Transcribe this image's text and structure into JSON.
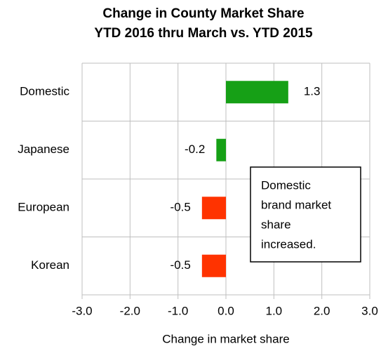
{
  "chart_data": {
    "type": "hbar",
    "title": "Change in County Market Share",
    "subtitle": "YTD 2016 thru March vs. YTD 2015",
    "xlabel": "Change in market share",
    "categories": [
      "Domestic",
      "Japanese",
      "European",
      "Korean"
    ],
    "values": [
      1.3,
      -0.2,
      -0.5,
      -0.5
    ],
    "colors": [
      "#16a016",
      "#16a016",
      "#ff3300",
      "#ff3300"
    ],
    "xlim": [
      -3,
      3
    ],
    "xticks": [
      {
        "value": -3,
        "label": "-3.0"
      },
      {
        "value": -2,
        "label": "-2.0"
      },
      {
        "value": -1,
        "label": "-1.0"
      },
      {
        "value": 0,
        "label": "0.0"
      },
      {
        "value": 1,
        "label": "1.0"
      },
      {
        "value": 2,
        "label": "2.0"
      },
      {
        "value": 3,
        "label": "3.0"
      }
    ],
    "grid": true,
    "annotation": [
      "Domestic",
      "brand market",
      "share",
      "increased."
    ]
  }
}
